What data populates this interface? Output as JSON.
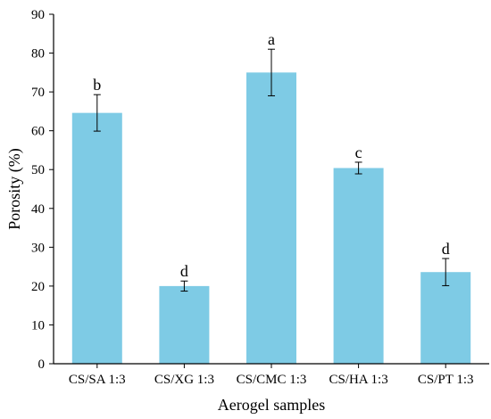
{
  "chart_data": {
    "type": "bar",
    "categories": [
      "CS/SA 1:3",
      "CS/XG 1:3",
      "CS/CMC 1:3",
      "CS/HA 1:3",
      "CS/PT 1:3"
    ],
    "values": [
      64.6,
      20.0,
      75.0,
      50.4,
      23.6
    ],
    "error": [
      4.7,
      1.3,
      6.0,
      1.5,
      3.5
    ],
    "significance": [
      "b",
      "d",
      "a",
      "c",
      "d"
    ],
    "title": "",
    "xlabel": "Aerogel samples",
    "ylabel": "Porosity (%)",
    "ylim": [
      0,
      90
    ],
    "yticks": [
      0,
      10,
      20,
      30,
      40,
      50,
      60,
      70,
      80,
      90
    ],
    "grid": false,
    "bar_color": "#7ecbe5",
    "error_color": "#000000"
  }
}
